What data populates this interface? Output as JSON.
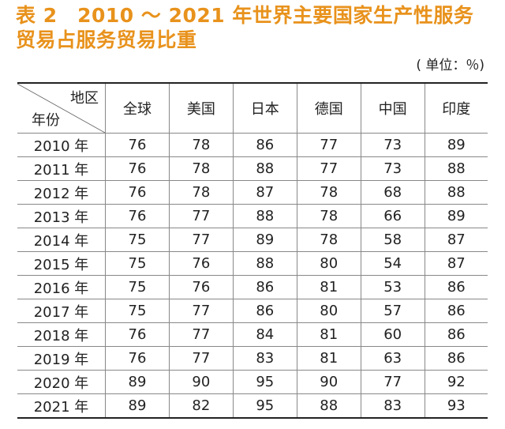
{
  "title_line1": "表 2　2010 ～ 2021 年世界主要国家生产性服务",
  "title_line2": "贸易占服务贸易比重",
  "unit": "( 单位：％)",
  "header_region": "地区",
  "header_year": "年份",
  "columns": [
    "全球",
    "美国",
    "日本",
    "德国",
    "中国",
    "印度"
  ],
  "rows": [
    {
      "year": "2010 年",
      "values": [
        "76",
        "78",
        "86",
        "77",
        "73",
        "89"
      ]
    },
    {
      "year": "2011 年",
      "values": [
        "76",
        "78",
        "88",
        "77",
        "73",
        "88"
      ]
    },
    {
      "year": "2012 年",
      "values": [
        "76",
        "78",
        "87",
        "78",
        "68",
        "88"
      ]
    },
    {
      "year": "2013 年",
      "values": [
        "76",
        "77",
        "88",
        "78",
        "66",
        "89"
      ]
    },
    {
      "year": "2014 年",
      "values": [
        "75",
        "77",
        "89",
        "78",
        "58",
        "87"
      ]
    },
    {
      "year": "2015 年",
      "values": [
        "75",
        "76",
        "88",
        "80",
        "54",
        "87"
      ]
    },
    {
      "year": "2016 年",
      "values": [
        "75",
        "76",
        "86",
        "81",
        "53",
        "86"
      ]
    },
    {
      "year": "2017 年",
      "values": [
        "75",
        "77",
        "86",
        "80",
        "57",
        "86"
      ]
    },
    {
      "year": "2018 年",
      "values": [
        "76",
        "77",
        "84",
        "81",
        "60",
        "86"
      ]
    },
    {
      "year": "2019 年",
      "values": [
        "76",
        "77",
        "83",
        "81",
        "63",
        "86"
      ]
    },
    {
      "year": "2020 年",
      "values": [
        "89",
        "90",
        "95",
        "90",
        "77",
        "92"
      ]
    },
    {
      "year": "2021 年",
      "values": [
        "89",
        "82",
        "95",
        "88",
        "83",
        "93"
      ]
    }
  ],
  "colors": {
    "title": "#e8921c"
  }
}
